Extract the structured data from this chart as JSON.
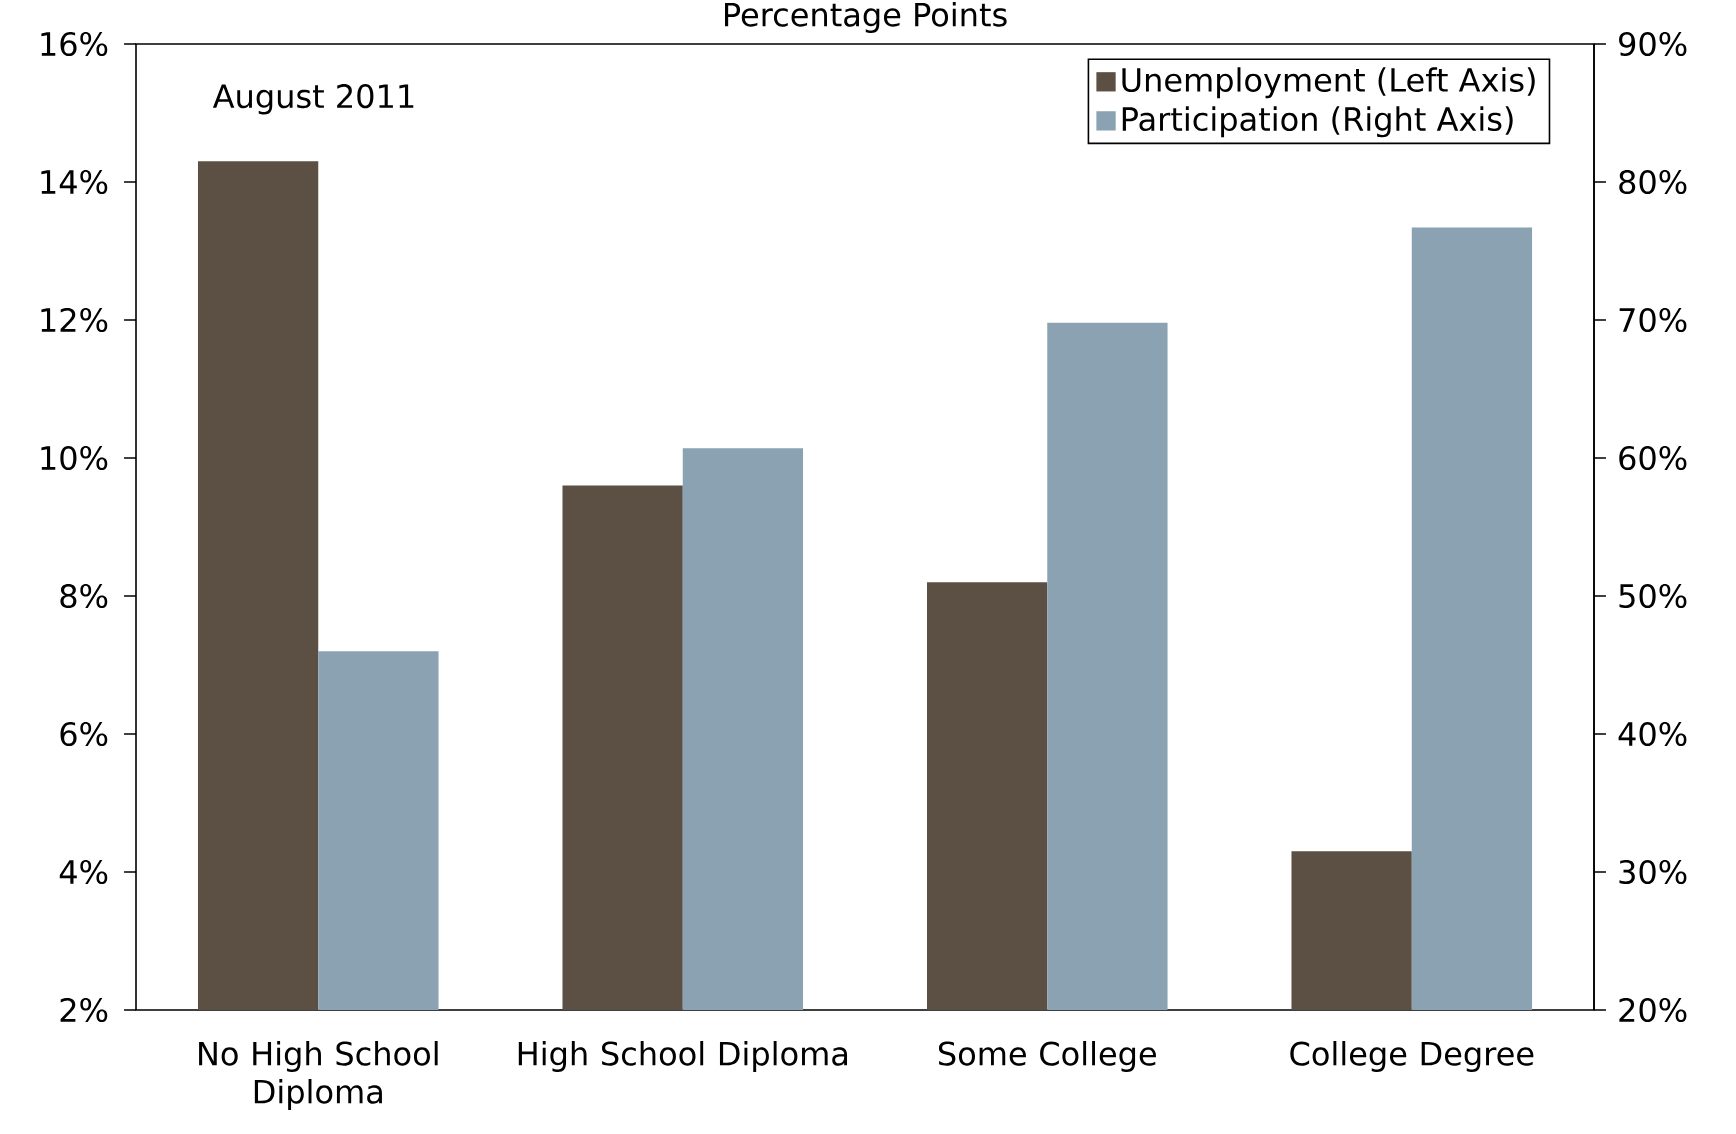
{
  "chart_data": {
    "type": "bar",
    "title": "Percentage Points",
    "annotations": [
      "August 2011"
    ],
    "categories": [
      "No High School Diploma",
      "High School Diploma",
      "Some College",
      "College Degree"
    ],
    "series": [
      {
        "name": "Unemployment (Left Axis)",
        "color": "#5c4f43",
        "values": [
          14.3,
          9.6,
          8.2,
          4.3
        ]
      },
      {
        "name": "Participation (Right Axis)",
        "color": "#8aa2b1",
        "axis": "y2",
        "values": [
          46.0,
          60.7,
          69.8,
          76.7
        ]
      }
    ],
    "ylim": [
      2,
      16
    ],
    "yticks": [
      {
        "value": 2,
        "label": "2%"
      },
      {
        "value": 4,
        "label": "4%"
      },
      {
        "value": 6,
        "label": "6%"
      },
      {
        "value": 8,
        "label": "8%"
      },
      {
        "value": 10,
        "label": "10%"
      },
      {
        "value": 12,
        "label": "12%"
      },
      {
        "value": 14,
        "label": "14%"
      },
      {
        "value": 16,
        "label": "16%"
      }
    ],
    "y2lim": [
      20,
      90
    ],
    "y2ticks": [
      {
        "value": 20,
        "label": "20%"
      },
      {
        "value": 30,
        "label": "30%"
      },
      {
        "value": 40,
        "label": "40%"
      },
      {
        "value": 50,
        "label": "50%"
      },
      {
        "value": 60,
        "label": "60%"
      },
      {
        "value": 70,
        "label": "70%"
      },
      {
        "value": 80,
        "label": "80%"
      },
      {
        "value": 90,
        "label": "90%"
      }
    ],
    "legend": "top right"
  }
}
